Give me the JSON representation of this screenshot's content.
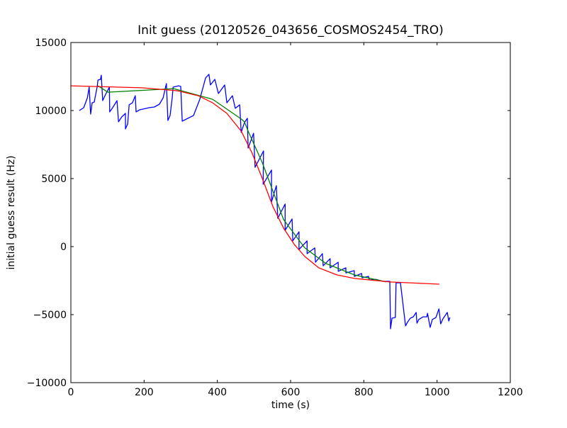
{
  "chart_data": {
    "type": "line",
    "title": "Init guess (20120526_043656_COSMOS2454_TRO)",
    "xlabel": "time (s)",
    "ylabel": "initial guess result (Hz)",
    "xlim": [
      0,
      1200
    ],
    "ylim": [
      -10000,
      15000
    ],
    "xticks": [
      0,
      200,
      400,
      600,
      800,
      1000,
      1200
    ],
    "yticks": [
      15000,
      10000,
      5000,
      0,
      -5000,
      -10000
    ],
    "xtick_labels": [
      "0",
      "200",
      "400",
      "600",
      "800",
      "1000",
      "1200"
    ],
    "ytick_labels": [
      "15000",
      "10000",
      "5000",
      "0",
      "−5000",
      "−10000"
    ],
    "grid": false,
    "series": [
      {
        "name": "data",
        "color": "#0000ff",
        "x": [
          23,
          35,
          45,
          50,
          54,
          58,
          64,
          66,
          72,
          74,
          81,
          83,
          87,
          95,
          105,
          106,
          114,
          126,
          130,
          139,
          149,
          149,
          155,
          159,
          168,
          176,
          178,
          188,
          213,
          228,
          242,
          252,
          259,
          261,
          265,
          271,
          277,
          279,
          294,
          300,
          304,
          335,
          352,
          368,
          377,
          381,
          393,
          403,
          420,
          426,
          441,
          449,
          461,
          465,
          474,
          482,
          484,
          499,
          503,
          526,
          525,
          548,
          548,
          561,
          565,
          585,
          585,
          604,
          606,
          623,
          623,
          645,
          645,
          666,
          668,
          687,
          689,
          708,
          708,
          730,
          730,
          751,
          751,
          774,
          774,
          794,
          795,
          813,
          815,
          832,
          852,
          865,
          871,
          873,
          877,
          886,
          888,
          900,
          914,
          919,
          927,
          935,
          943,
          945,
          950,
          962,
          972,
          974,
          981,
          987,
          997,
          1005,
          1010,
          1016,
          1028,
          1032,
          1035
        ],
        "y": [
          10000,
          10210,
          10940,
          11720,
          9740,
          10570,
          10630,
          10940,
          11770,
          12240,
          12290,
          12600,
          10730,
          11200,
          11720,
          9900,
          10210,
          10730,
          9170,
          9530,
          9790,
          8650,
          9010,
          10420,
          10570,
          11090,
          9900,
          10050,
          10210,
          10260,
          10470,
          10940,
          11770,
          11980,
          9270,
          9640,
          10990,
          11720,
          11820,
          11770,
          9220,
          9640,
          10830,
          12400,
          12660,
          11880,
          12290,
          11250,
          11880,
          10570,
          11090,
          10160,
          10420,
          8390,
          9110,
          9430,
          7240,
          8330,
          5830,
          7030,
          4580,
          5630,
          3280,
          4480,
          2080,
          3130,
          1200,
          2030,
          420,
          1090,
          -210,
          420,
          -520,
          -100,
          -1150,
          -520,
          -1410,
          -890,
          -1560,
          -1150,
          -1820,
          -1560,
          -1930,
          -1770,
          -2190,
          -1980,
          -2290,
          -2190,
          -2450,
          -2400,
          -2550,
          -2550,
          -2550,
          -6040,
          -5260,
          -5210,
          -2660,
          -2660,
          -5830,
          -5570,
          -5260,
          -5160,
          -4840,
          -5630,
          -5360,
          -5160,
          -5160,
          -4900,
          -5940,
          -5360,
          -5210,
          -4580,
          -5680,
          -5310,
          -4840,
          -5470,
          -5210
        ]
      },
      {
        "name": "fit-green",
        "color": "#008000",
        "x": [
          74,
          101,
          281,
          387,
          465,
          474,
          484,
          523,
          581,
          639,
          697,
          774,
          861
        ],
        "y": [
          11820,
          11350,
          11610,
          10830,
          9380,
          9170,
          8490,
          6150,
          1980,
          -100,
          -1250,
          -2080,
          -2600
        ]
      },
      {
        "name": "fit-red",
        "color": "#ff0000",
        "x": [
          0,
          194,
          290,
          348,
          387,
          426,
          465,
          494,
          523,
          552,
          581,
          610,
          639,
          677,
          726,
          774,
          871,
          1006
        ],
        "y": [
          11820,
          11670,
          11460,
          11090,
          10570,
          9790,
          8490,
          6930,
          5000,
          2920,
          1350,
          160,
          -730,
          -1560,
          -2080,
          -2340,
          -2600,
          -2760
        ]
      }
    ]
  }
}
